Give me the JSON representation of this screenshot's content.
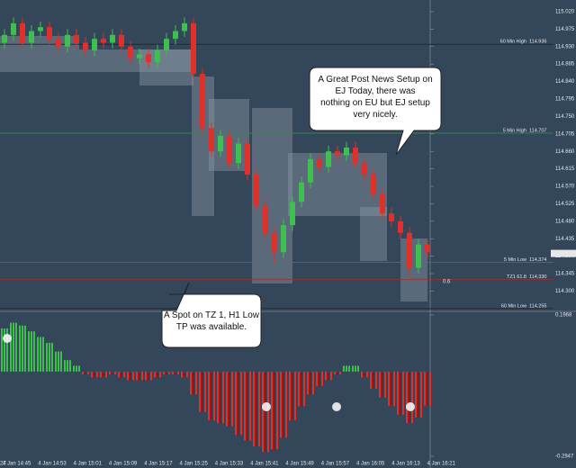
{
  "chart": {
    "type": "candlestick",
    "ylim": [
      114.25,
      115.05
    ],
    "yticks": [
      {
        "value": 115.02,
        "label": "115.020"
      },
      {
        "value": 114.975,
        "label": "114.975"
      },
      {
        "value": 114.93,
        "label": "114.930"
      },
      {
        "value": 114.885,
        "label": "114.885"
      },
      {
        "value": 114.84,
        "label": "114.840"
      },
      {
        "value": 114.795,
        "label": "114.795"
      },
      {
        "value": 114.75,
        "label": "114.750"
      },
      {
        "value": 114.705,
        "label": "114.705"
      },
      {
        "value": 114.66,
        "label": "114.660"
      },
      {
        "value": 114.615,
        "label": "114.615"
      },
      {
        "value": 114.57,
        "label": "114.570"
      },
      {
        "value": 114.525,
        "label": "114.525"
      },
      {
        "value": 114.48,
        "label": "114.480"
      },
      {
        "value": 114.435,
        "label": "114.435"
      },
      {
        "value": 114.39,
        "label": "114.390"
      },
      {
        "value": 114.345,
        "label": "114.345"
      },
      {
        "value": 114.3,
        "label": "114.300"
      }
    ],
    "times": [
      "27",
      "4 Jan 14:45",
      "4 Jan 14:53",
      "4 Jan 15:01",
      "4 Jan 15:09",
      "4 Jan 15:17",
      "4 Jan 15:25",
      "4 Jan 15:33",
      "4 Jan 15:41",
      "4 Jan 15:49",
      "4 Jan 15:57",
      "4 Jan 16:05",
      "4 Jan 16:13",
      "4 Jan 16:21"
    ],
    "open": [
      114.94,
      114.96,
      114.99,
      114.94,
      114.97,
      114.98,
      114.95,
      114.93,
      114.96,
      114.94,
      114.92,
      114.95,
      114.94,
      114.96,
      114.93,
      114.9,
      114.91,
      114.89,
      114.92,
      114.95,
      114.97,
      114.99,
      114.86,
      114.72,
      114.66,
      114.7,
      114.63,
      114.68,
      114.6,
      114.52,
      114.45,
      114.4,
      114.47,
      114.53,
      114.58,
      114.64,
      114.62,
      114.66,
      114.65,
      114.67,
      114.63,
      114.6,
      114.55,
      114.5,
      114.48,
      114.45,
      114.36,
      114.42
    ],
    "high": [
      114.975,
      115.005,
      115.005,
      114.985,
      114.995,
      114.995,
      114.965,
      114.975,
      114.975,
      114.955,
      114.965,
      114.965,
      114.975,
      114.975,
      114.945,
      114.925,
      114.925,
      114.935,
      114.965,
      114.985,
      115.005,
      115.005,
      114.875,
      114.735,
      114.715,
      114.715,
      114.695,
      114.695,
      114.615,
      114.535,
      114.465,
      114.485,
      114.545,
      114.595,
      114.655,
      114.655,
      114.675,
      114.675,
      114.685,
      114.685,
      114.645,
      114.615,
      114.565,
      114.515,
      114.495,
      114.465,
      114.435,
      114.435
    ],
    "low": [
      114.925,
      114.945,
      114.925,
      114.925,
      114.955,
      114.935,
      114.915,
      114.915,
      114.925,
      114.905,
      114.905,
      114.925,
      114.925,
      114.915,
      114.885,
      114.885,
      114.875,
      114.875,
      114.905,
      114.935,
      114.955,
      114.845,
      114.705,
      114.645,
      114.645,
      114.615,
      114.615,
      114.585,
      114.505,
      114.435,
      114.37,
      114.385,
      114.455,
      114.515,
      114.565,
      114.605,
      114.605,
      114.635,
      114.635,
      114.615,
      114.585,
      114.535,
      114.485,
      114.465,
      114.435,
      114.335,
      114.345,
      114.385
    ],
    "close": [
      114.96,
      114.99,
      114.94,
      114.97,
      114.98,
      114.95,
      114.93,
      114.96,
      114.94,
      114.92,
      114.95,
      114.94,
      114.96,
      114.93,
      114.9,
      114.91,
      114.89,
      114.92,
      114.95,
      114.97,
      114.99,
      114.86,
      114.72,
      114.66,
      114.7,
      114.63,
      114.68,
      114.6,
      114.52,
      114.45,
      114.4,
      114.47,
      114.53,
      114.58,
      114.64,
      114.62,
      114.66,
      114.65,
      114.67,
      114.63,
      114.6,
      114.55,
      114.5,
      114.48,
      114.45,
      114.36,
      114.42,
      114.4
    ],
    "up_color": "#3fbf4f",
    "down_color": "#e0302a",
    "levels": [
      {
        "name": "60 Min High",
        "value": 114.936,
        "color": "#222222"
      },
      {
        "name": "5 Min High",
        "value": 114.707,
        "color": "#2f8f3f"
      },
      {
        "name": "5 Min Low",
        "value": 114.374,
        "color": "#2f8f3f"
      },
      {
        "name": "TZ1 61.8",
        "value": 114.33,
        "value_label": "114.330",
        "color": "#a03030"
      },
      {
        "name": "60 Min Low",
        "value": 114.255,
        "color": "#222222"
      }
    ],
    "current_price": 114.397,
    "ratio_label": "0.6",
    "oscillator": {
      "ylim": [
        -0.2947,
        0.1968
      ],
      "yticks": [
        0.1968,
        -0.2947
      ],
      "values": [
        0.15,
        0.17,
        0.16,
        0.14,
        0.12,
        0.1,
        0.07,
        0.04,
        0.02,
        -0.01,
        -0.02,
        -0.02,
        -0.01,
        -0.02,
        -0.03,
        -0.03,
        -0.03,
        -0.02,
        -0.01,
        -0.01,
        -0.02,
        -0.08,
        -0.14,
        -0.17,
        -0.18,
        -0.19,
        -0.22,
        -0.24,
        -0.26,
        -0.28,
        -0.27,
        -0.23,
        -0.17,
        -0.12,
        -0.08,
        -0.05,
        -0.03,
        -0.01,
        0.02,
        0.02,
        -0.02,
        -0.06,
        -0.09,
        -0.12,
        -0.15,
        -0.18,
        -0.16,
        -0.12
      ],
      "markers": [
        "3",
        "3",
        "4",
        "5"
      ]
    },
    "annotations": [
      "A Great Post News Setup on EJ Today, there was nothing on EU but EJ setup very nicely.",
      "A Spot on TZ 1, H1 Low TP was available."
    ]
  }
}
